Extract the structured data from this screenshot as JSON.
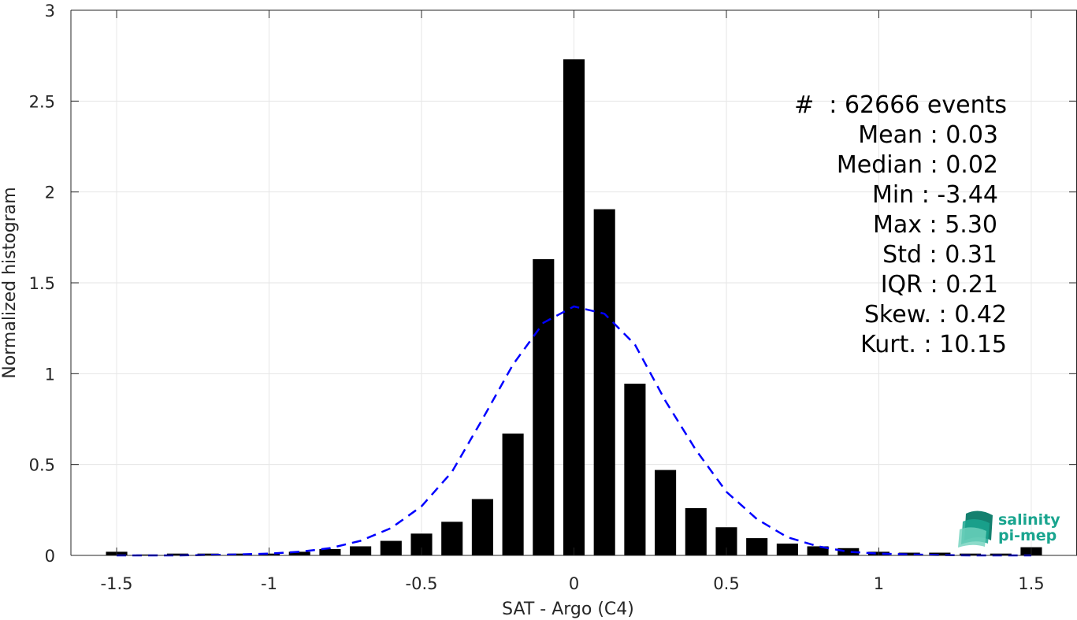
{
  "chart_data": {
    "type": "bar",
    "xlabel": "SAT - Argo (C4)",
    "ylabel": "Normalized histogram",
    "xlim": [
      -1.65,
      1.65
    ],
    "ylim": [
      0,
      3
    ],
    "x_ticks": [
      -1.5,
      -1,
      -0.5,
      0,
      0.5,
      1,
      1.5
    ],
    "x_tick_labels": [
      "-1.5",
      "-1",
      "-0.5",
      "0",
      "0.5",
      "1",
      "1.5"
    ],
    "y_ticks": [
      0,
      0.5,
      1,
      1.5,
      2,
      2.5,
      3
    ],
    "y_tick_labels": [
      "0",
      "0.5",
      "1",
      "1.5",
      "2",
      "2.5",
      "3"
    ],
    "grid": true,
    "bar_color": "#000000",
    "bar_width": 0.07,
    "bins": {
      "x": [
        -1.5,
        -1.4,
        -1.3,
        -1.2,
        -1.1,
        -1.0,
        -0.9,
        -0.8,
        -0.7,
        -0.6,
        -0.5,
        -0.4,
        -0.3,
        -0.2,
        -0.1,
        0.0,
        0.1,
        0.2,
        0.3,
        0.4,
        0.5,
        0.6,
        0.7,
        0.8,
        0.9,
        1.0,
        1.1,
        1.2,
        1.3,
        1.4,
        1.5
      ],
      "values": [
        0.02,
        0.005,
        0.01,
        0.01,
        0.01,
        0.01,
        0.02,
        0.035,
        0.05,
        0.08,
        0.12,
        0.185,
        0.31,
        0.67,
        1.63,
        2.73,
        1.905,
        0.945,
        0.47,
        0.26,
        0.155,
        0.095,
        0.065,
        0.05,
        0.04,
        0.02,
        0.015,
        0.015,
        0.01,
        0.01,
        0.045
      ]
    },
    "fit_curve": {
      "style": "dashed",
      "color": "#0000ff",
      "x": [
        -1.5,
        -1.4,
        -1.3,
        -1.2,
        -1.1,
        -1.0,
        -0.9,
        -0.8,
        -0.7,
        -0.6,
        -0.5,
        -0.4,
        -0.3,
        -0.2,
        -0.1,
        0.0,
        0.1,
        0.2,
        0.3,
        0.4,
        0.5,
        0.6,
        0.7,
        0.8,
        0.9,
        1.0,
        1.1,
        1.2,
        1.3,
        1.4,
        1.5
      ],
      "y": [
        0.0,
        0.0,
        0.0,
        0.002,
        0.005,
        0.01,
        0.02,
        0.04,
        0.08,
        0.15,
        0.27,
        0.46,
        0.75,
        1.05,
        1.28,
        1.37,
        1.33,
        1.16,
        0.85,
        0.58,
        0.35,
        0.2,
        0.1,
        0.05,
        0.02,
        0.01,
        0.005,
        0.002,
        0.0,
        0.0,
        0.0
      ]
    },
    "annotation_lines": [
      "#  : 62666 events",
      "Mean : 0.03",
      "Median : 0.02",
      "Min : -3.44",
      "Max : 5.30",
      "Std : 0.31",
      "IQR : 0.21",
      "Skew. : 0.42",
      "Kurt. : 10.15"
    ]
  },
  "logo": {
    "line1": "salinity",
    "line2": "pi-mep",
    "color": "#1aa58f"
  }
}
